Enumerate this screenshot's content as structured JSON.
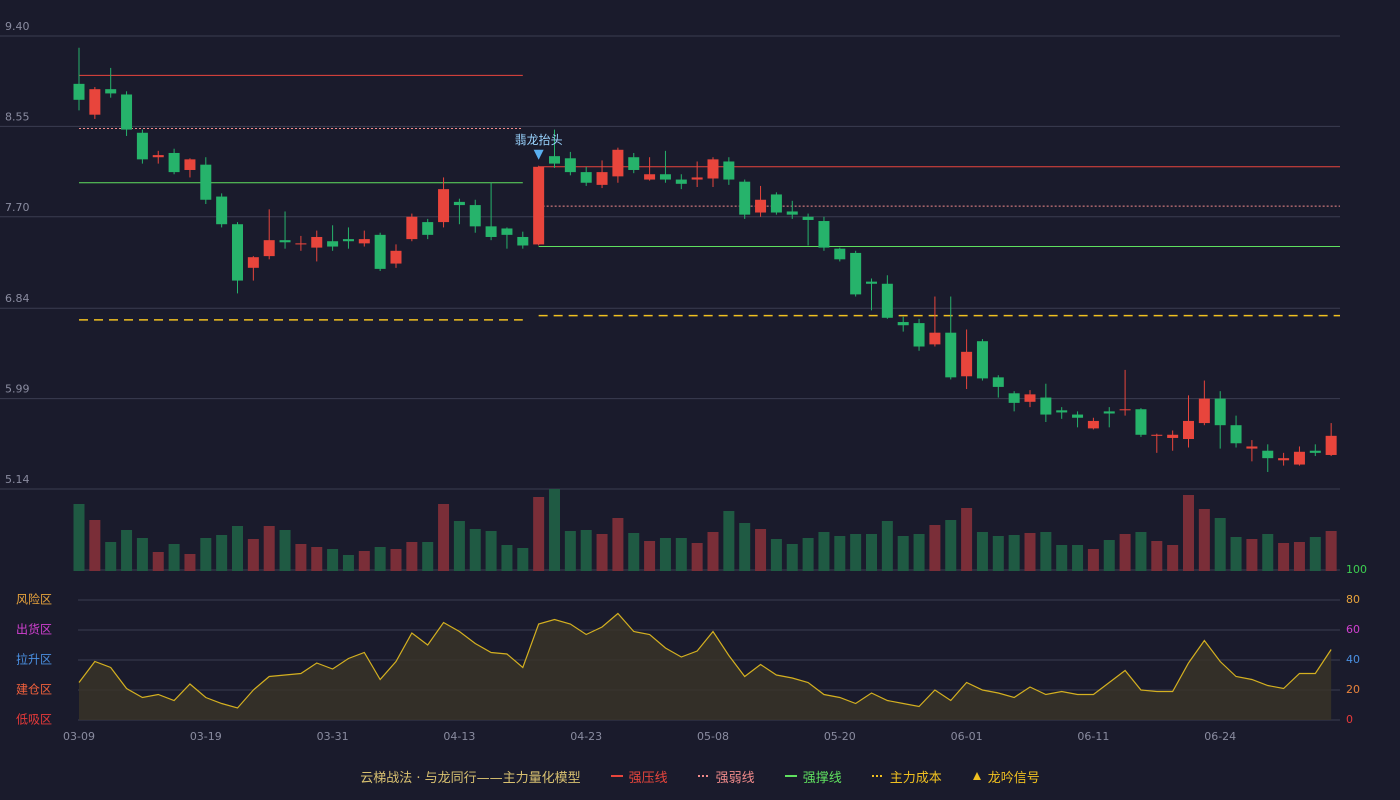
{
  "chart_data": {
    "type": "candlestick",
    "categories": [
      "03-09",
      null,
      null,
      null,
      null,
      null,
      null,
      null,
      "03-19",
      null,
      null,
      null,
      null,
      null,
      null,
      null,
      "03-31",
      null,
      null,
      null,
      null,
      null,
      null,
      null,
      "04-13",
      null,
      null,
      null,
      null,
      null,
      null,
      null,
      "04-23",
      null,
      null,
      null,
      null,
      null,
      null,
      null,
      "05-08",
      null,
      null,
      null,
      null,
      null,
      null,
      null,
      "05-20",
      null,
      null,
      null,
      null,
      null,
      null,
      null,
      "06-01",
      null,
      null,
      null,
      null,
      null,
      null,
      null,
      "06-11",
      null,
      null,
      null,
      null,
      null,
      null,
      null,
      "06-24",
      null,
      null,
      null,
      null,
      null,
      null,
      null
    ],
    "open": [
      8.95,
      8.66,
      8.9,
      8.85,
      8.49,
      8.26,
      8.3,
      8.14,
      8.19,
      7.89,
      7.63,
      7.22,
      7.33,
      7.48,
      7.44,
      7.41,
      7.47,
      7.49,
      7.45,
      7.53,
      7.26,
      7.49,
      7.65,
      7.65,
      7.84,
      7.81,
      7.61,
      7.59,
      7.51,
      7.44,
      8.27,
      8.25,
      8.12,
      8.0,
      8.08,
      8.26,
      8.05,
      8.1,
      8.05,
      8.05,
      8.06,
      8.22,
      8.03,
      7.74,
      7.91,
      7.75,
      7.7,
      7.66,
      7.4,
      7.36,
      7.09,
      7.07,
      6.71,
      6.7,
      6.5,
      6.61,
      6.2,
      6.53,
      6.19,
      6.04,
      5.96,
      6.0,
      5.88,
      5.84,
      5.71,
      5.87,
      5.88,
      5.89,
      5.64,
      5.62,
      5.61,
      5.76,
      5.99,
      5.74,
      5.52,
      5.5,
      5.41,
      5.37,
      5.5,
      5.46
    ],
    "high": [
      9.29,
      8.92,
      9.1,
      8.88,
      8.52,
      8.32,
      8.34,
      8.25,
      8.26,
      7.92,
      7.65,
      7.33,
      7.77,
      7.75,
      7.52,
      7.57,
      7.62,
      7.6,
      7.57,
      7.55,
      7.44,
      7.73,
      7.68,
      8.07,
      7.87,
      7.86,
      8.02,
      7.6,
      7.56,
      8.18,
      8.52,
      8.31,
      8.17,
      8.23,
      8.35,
      8.3,
      8.26,
      8.32,
      8.1,
      8.22,
      8.26,
      8.26,
      8.05,
      7.99,
      7.93,
      7.85,
      7.73,
      7.7,
      7.41,
      7.38,
      7.12,
      7.15,
      6.76,
      6.74,
      6.95,
      6.95,
      6.64,
      6.55,
      6.21,
      6.06,
      6.07,
      6.13,
      5.91,
      5.87,
      5.81,
      5.91,
      6.26,
      5.9,
      5.66,
      5.69,
      6.02,
      6.16,
      6.06,
      5.83,
      5.6,
      5.56,
      5.48,
      5.54,
      5.56,
      5.76
    ],
    "low": [
      8.7,
      8.62,
      8.82,
      8.46,
      8.2,
      8.2,
      8.1,
      8.07,
      7.82,
      7.6,
      6.98,
      7.1,
      7.3,
      7.4,
      7.38,
      7.28,
      7.38,
      7.4,
      7.42,
      7.19,
      7.22,
      7.47,
      7.49,
      7.6,
      7.63,
      7.55,
      7.48,
      7.4,
      7.4,
      7.43,
      8.16,
      8.09,
      7.99,
      7.97,
      8.02,
      8.11,
      8.04,
      8.02,
      7.96,
      7.98,
      7.98,
      8.0,
      7.68,
      7.7,
      7.72,
      7.68,
      7.43,
      7.38,
      7.28,
      6.95,
      6.82,
      6.74,
      6.62,
      6.44,
      6.48,
      6.17,
      6.08,
      6.16,
      6.0,
      5.87,
      5.91,
      5.77,
      5.8,
      5.72,
      5.7,
      5.72,
      5.83,
      5.63,
      5.48,
      5.5,
      5.53,
      5.74,
      5.52,
      5.53,
      5.4,
      5.3,
      5.36,
      5.36,
      5.45,
      5.45
    ],
    "close": [
      8.8,
      8.9,
      8.86,
      8.52,
      8.24,
      8.28,
      8.12,
      8.24,
      7.86,
      7.63,
      7.1,
      7.32,
      7.48,
      7.46,
      7.45,
      7.51,
      7.42,
      7.47,
      7.49,
      7.21,
      7.38,
      7.7,
      7.53,
      7.96,
      7.81,
      7.61,
      7.51,
      7.53,
      7.43,
      8.17,
      8.2,
      8.12,
      8.02,
      8.12,
      8.33,
      8.14,
      8.1,
      8.05,
      8.01,
      8.07,
      8.24,
      8.05,
      7.72,
      7.86,
      7.74,
      7.72,
      7.67,
      7.41,
      7.3,
      6.97,
      7.07,
      6.75,
      6.68,
      6.48,
      6.61,
      6.19,
      6.43,
      6.18,
      6.1,
      5.95,
      6.03,
      5.84,
      5.86,
      5.81,
      5.78,
      5.85,
      5.89,
      5.65,
      5.65,
      5.65,
      5.78,
      5.99,
      5.74,
      5.57,
      5.54,
      5.43,
      5.43,
      5.49,
      5.48,
      5.64
    ],
    "ylim": [
      5.14,
      9.4
    ],
    "yticks": [
      {
        "value": 5.14,
        "label": "5.14"
      },
      {
        "value": 5.99,
        "label": "5.99"
      },
      {
        "value": 6.84,
        "label": "6.84"
      },
      {
        "value": 7.7,
        "label": "7.70"
      },
      {
        "value": 8.55,
        "label": "8.55"
      },
      {
        "value": 9.4,
        "label": "9.40"
      }
    ],
    "up_color": "#e8453c",
    "down_color": "#26b36b",
    "grid": true,
    "levels": [
      {
        "name": "强压线",
        "color": "#e8453c",
        "style": "solid",
        "segments": [
          {
            "start": 0,
            "end": 28,
            "value": 9.03
          },
          {
            "start": 29,
            "end": 79,
            "value": 8.17
          }
        ]
      },
      {
        "name": "强弱线",
        "color": "#f08a8a",
        "style": "dotted",
        "segments": [
          {
            "start": 0,
            "end": 28,
            "value": 8.53
          },
          {
            "start": 29,
            "end": 79,
            "value": 7.8
          }
        ]
      },
      {
        "name": "强撑线",
        "color": "#5fe05f",
        "style": "solid",
        "segments": [
          {
            "start": 0,
            "end": 28,
            "value": 8.02
          },
          {
            "start": 29,
            "end": 79,
            "value": 7.42
          }
        ]
      },
      {
        "name": "主力成本",
        "color": "#f0c020",
        "style": "dashed",
        "segments": [
          {
            "start": 0,
            "end": 28,
            "value": 6.73
          },
          {
            "start": 29,
            "end": 79,
            "value": 6.77
          }
        ]
      }
    ],
    "signal": {
      "index": 29,
      "label": "翡龙抬头",
      "color": "#5ab0f0"
    },
    "signal_legend": {
      "name": "龙吟信号",
      "color": "#f0c020"
    },
    "legend_title": "云梯战法 · 与龙同行——主力量化模型",
    "volume": {
      "type": "bar",
      "values": [
        67,
        51,
        29,
        41,
        33,
        19,
        27,
        17,
        33,
        36,
        45,
        32,
        45,
        41,
        27,
        24,
        22,
        16,
        20,
        24,
        22,
        29,
        29,
        67,
        50,
        42,
        40,
        26,
        23,
        74,
        82,
        40,
        41,
        37,
        53,
        38,
        30,
        33,
        33,
        28,
        39,
        60,
        48,
        42,
        32,
        27,
        33,
        39,
        35,
        37,
        37,
        50,
        35,
        37,
        46,
        51,
        63,
        39,
        35,
        36,
        38,
        39,
        26,
        26,
        22,
        31,
        37,
        39,
        30,
        26,
        76,
        62,
        53,
        34,
        32,
        37,
        28,
        29,
        34,
        40
      ],
      "ylim": [
        0,
        82
      ],
      "up_color": "#7a2e38",
      "down_color": "#1f5a43"
    },
    "indicator": {
      "type": "line",
      "values": [
        25,
        39,
        35,
        21,
        15,
        17,
        13,
        24,
        15,
        11,
        8,
        20,
        29,
        30,
        31,
        38,
        34,
        41,
        45,
        27,
        39,
        58,
        50,
        65,
        59,
        51,
        45,
        44,
        35,
        64,
        67,
        64,
        57,
        62,
        71,
        59,
        57,
        48,
        42,
        46,
        59,
        43,
        29,
        37,
        30,
        28,
        25,
        17,
        15,
        11,
        18,
        13,
        11,
        9,
        20,
        13,
        25,
        20,
        18,
        15,
        22,
        17,
        19,
        17,
        17,
        25,
        33,
        20,
        19,
        19,
        38,
        53,
        39,
        29,
        27,
        23,
        21,
        31,
        31,
        47
      ],
      "color": "#d4b020",
      "fill": "#3a3428",
      "ylim": [
        0,
        100
      ],
      "yticks": [
        0,
        20,
        40,
        60,
        80,
        100
      ],
      "ytick_colors": [
        "#e83a3a",
        "#e8833c",
        "#4a90e2",
        "#d040d0",
        "#e8a33c",
        "#3cd050"
      ],
      "zones": [
        {
          "label": "风险区",
          "value": 80,
          "color": "#e8a33c"
        },
        {
          "label": "出货区",
          "value": 60,
          "color": "#d040d0"
        },
        {
          "label": "拉升区",
          "value": 40,
          "color": "#4a90e2"
        },
        {
          "label": "建仓区",
          "value": 20,
          "color": "#f0603c"
        },
        {
          "label": "低吸区",
          "value": 0,
          "color": "#e83a3a"
        }
      ]
    }
  }
}
